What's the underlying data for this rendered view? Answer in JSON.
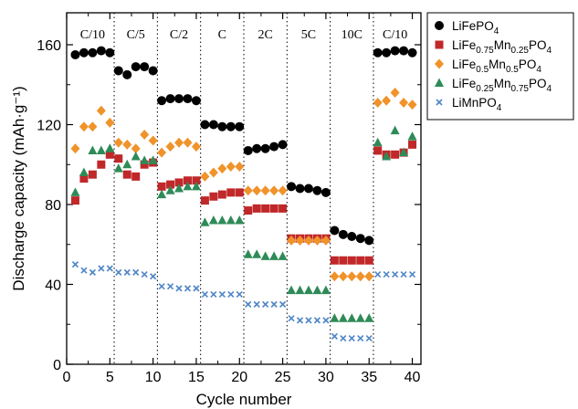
{
  "chart_data": {
    "type": "scatter",
    "xlabel": "Cycle number",
    "ylabel": "Discharge capacity (mAh·g⁻¹)",
    "xlim": [
      0,
      41
    ],
    "ylim": [
      0,
      176
    ],
    "xticks": [
      "0",
      "5",
      "10",
      "15",
      "20",
      "25",
      "30",
      "35",
      "40"
    ],
    "yticks": [
      "0",
      "40",
      "80",
      "120",
      "160"
    ],
    "rate_dividers": [
      5.5,
      10.5,
      15.5,
      20.5,
      25.5,
      30.5,
      35.5
    ],
    "rate_labels": [
      {
        "label": "C/10",
        "x": 3
      },
      {
        "label": "C/5",
        "x": 8
      },
      {
        "label": "C/2",
        "x": 13
      },
      {
        "label": "C",
        "x": 18
      },
      {
        "label": "2C",
        "x": 23
      },
      {
        "label": "5C",
        "x": 28
      },
      {
        "label": "10C",
        "x": 33
      },
      {
        "label": "C/10",
        "x": 38
      }
    ],
    "legend_position": "outside-right",
    "series": [
      {
        "name": "LiFePO4",
        "legend": {
          "base": "LiFePO",
          "parts": [
            {
              "t": "4",
              "sub": true
            }
          ]
        },
        "marker": "circle",
        "color": "#000000",
        "x": [
          1,
          2,
          3,
          4,
          5,
          6,
          7,
          8,
          9,
          10,
          11,
          12,
          13,
          14,
          15,
          16,
          17,
          18,
          19,
          20,
          21,
          22,
          23,
          24,
          25,
          26,
          27,
          28,
          29,
          30,
          31,
          32,
          33,
          34,
          35,
          36,
          37,
          38,
          39,
          40
        ],
        "y": [
          155,
          156,
          156,
          157,
          156,
          147,
          145,
          149,
          149,
          147,
          132,
          133,
          133,
          133,
          132,
          120,
          120,
          119,
          119,
          119,
          107,
          108,
          108,
          109,
          110,
          89,
          88,
          88,
          87,
          86,
          67,
          65,
          64,
          63,
          62,
          156,
          156,
          157,
          157,
          156
        ]
      },
      {
        "name": "LiFe0.75Mn0.25PO4",
        "legend": {
          "base": "LiFe",
          "parts": [
            {
              "t": "0.75",
              "sub": true
            },
            {
              "t": "Mn",
              "sub": false
            },
            {
              "t": "0.25",
              "sub": true
            },
            {
              "t": "PO",
              "sub": false
            },
            {
              "t": "4",
              "sub": true
            }
          ]
        },
        "marker": "square",
        "color": "#c0282a",
        "x": [
          1,
          2,
          3,
          4,
          5,
          6,
          7,
          8,
          9,
          10,
          11,
          12,
          13,
          14,
          15,
          16,
          17,
          18,
          19,
          20,
          21,
          22,
          23,
          24,
          25,
          26,
          27,
          28,
          29,
          30,
          31,
          32,
          33,
          34,
          35,
          36,
          37,
          38,
          39,
          40
        ],
        "y": [
          82,
          93,
          95,
          100,
          105,
          103,
          95,
          94,
          100,
          101,
          89,
          90,
          91,
          92,
          92,
          82,
          84,
          85,
          86,
          86,
          77,
          78,
          78,
          78,
          78,
          63,
          63,
          63,
          63,
          63,
          52,
          52,
          52,
          52,
          52,
          107,
          105,
          105,
          106,
          110
        ]
      },
      {
        "name": "LiFe0.5Mn0.5PO4",
        "legend": {
          "base": "LiFe",
          "parts": [
            {
              "t": "0.5",
              "sub": true
            },
            {
              "t": "Mn",
              "sub": false
            },
            {
              "t": "0.5",
              "sub": true
            },
            {
              "t": "PO",
              "sub": false
            },
            {
              "t": "4",
              "sub": true
            }
          ]
        },
        "marker": "diamond",
        "color": "#f0932a",
        "x": [
          1,
          2,
          3,
          4,
          5,
          6,
          7,
          8,
          9,
          10,
          11,
          12,
          13,
          14,
          15,
          16,
          17,
          18,
          19,
          20,
          21,
          22,
          23,
          24,
          25,
          26,
          27,
          28,
          29,
          30,
          31,
          32,
          33,
          34,
          35,
          36,
          37,
          38,
          39,
          40
        ],
        "y": [
          108,
          119,
          119,
          127,
          121,
          111,
          110,
          108,
          115,
          112,
          106,
          109,
          111,
          111,
          109,
          94,
          96,
          98,
          99,
          99,
          87,
          87,
          87,
          87,
          87,
          62,
          62,
          62,
          62,
          62,
          44,
          44,
          44,
          44,
          44,
          131,
          132,
          136,
          131,
          130
        ]
      },
      {
        "name": "LiFe0.25Mn0.75PO4",
        "legend": {
          "base": "LiFe",
          "parts": [
            {
              "t": "0.25",
              "sub": true
            },
            {
              "t": "Mn",
              "sub": false
            },
            {
              "t": "0.75",
              "sub": true
            },
            {
              "t": "PO",
              "sub": false
            },
            {
              "t": "4",
              "sub": true
            }
          ]
        },
        "marker": "triangle",
        "color": "#2e8b57",
        "x": [
          1,
          2,
          3,
          4,
          5,
          6,
          7,
          8,
          9,
          10,
          11,
          12,
          13,
          14,
          15,
          16,
          17,
          18,
          19,
          20,
          21,
          22,
          23,
          24,
          25,
          26,
          27,
          28,
          29,
          30,
          31,
          32,
          33,
          34,
          35,
          36,
          37,
          38,
          39,
          40
        ],
        "y": [
          86,
          96,
          107,
          107,
          108,
          98,
          100,
          104,
          102,
          102,
          85,
          87,
          88,
          89,
          89,
          71,
          72,
          72,
          72,
          72,
          55,
          55,
          54,
          54,
          54,
          37,
          37,
          37,
          37,
          37,
          23,
          23,
          23,
          23,
          23,
          111,
          104,
          117,
          106,
          114
        ]
      },
      {
        "name": "LiMnPO4",
        "legend": {
          "base": "LiMnPO",
          "parts": [
            {
              "t": "4",
              "sub": true
            }
          ]
        },
        "marker": "cross",
        "color": "#4f86c6",
        "x": [
          1,
          2,
          3,
          4,
          5,
          6,
          7,
          8,
          9,
          10,
          11,
          12,
          13,
          14,
          15,
          16,
          17,
          18,
          19,
          20,
          21,
          22,
          23,
          24,
          25,
          26,
          27,
          28,
          29,
          30,
          31,
          32,
          33,
          34,
          35,
          36,
          37,
          38,
          39,
          40
        ],
        "y": [
          50,
          47,
          46,
          48,
          48,
          46,
          46,
          46,
          45,
          44,
          39,
          39,
          38,
          38,
          38,
          35,
          35,
          35,
          35,
          35,
          30,
          30,
          30,
          30,
          30,
          23,
          22,
          22,
          22,
          22,
          14,
          13,
          13,
          13,
          13,
          45,
          45,
          45,
          45,
          45
        ]
      }
    ]
  }
}
